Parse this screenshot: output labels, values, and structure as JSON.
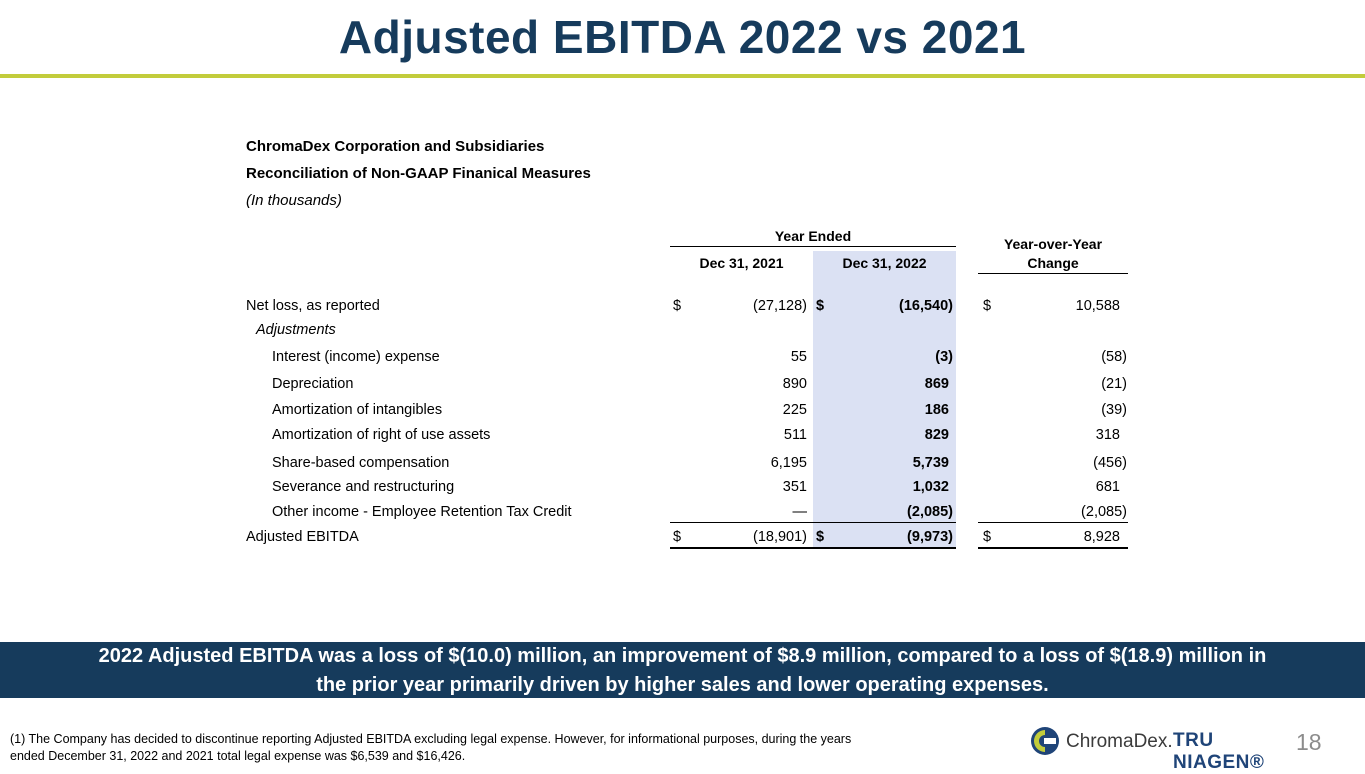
{
  "title": "Adjusted EBITDA  2022 vs 2021",
  "header": {
    "company": "ChromaDex Corporation and Subsidiaries",
    "subtitle": "Reconciliation of Non-GAAP Finanical Measures",
    "units": "(In thousands)"
  },
  "table": {
    "group_header": "Year Ended",
    "col1": "Dec 31, 2021",
    "col2": "Dec 31, 2022",
    "col3_line1": "Year-over-Year",
    "col3_line2": "Change",
    "rows": [
      {
        "label": "Net loss, as reported",
        "d1": "$",
        "v1": "(27,128)",
        "d2": "$",
        "v2": "(16,540)",
        "d3": "$",
        "v3": "10,588"
      },
      {
        "label": "Adjustments",
        "d1": "",
        "v1": "",
        "d2": "",
        "v2": "",
        "d3": "",
        "v3": ""
      },
      {
        "label": "Interest (income) expense",
        "d1": "",
        "v1": "55",
        "d2": "",
        "v2": "(3)",
        "d3": "",
        "v3": "(58)"
      },
      {
        "label": "Depreciation",
        "d1": "",
        "v1": "890",
        "d2": "",
        "v2": "869",
        "d3": "",
        "v3": "(21)"
      },
      {
        "label": "Amortization of intangibles",
        "d1": "",
        "v1": "225",
        "d2": "",
        "v2": "186",
        "d3": "",
        "v3": "(39)"
      },
      {
        "label": "Amortization of right of use assets",
        "d1": "",
        "v1": "511",
        "d2": "",
        "v2": "829",
        "d3": "",
        "v3": "318"
      },
      {
        "label": "Share-based compensation",
        "d1": "",
        "v1": "6,195",
        "d2": "",
        "v2": "5,739",
        "d3": "",
        "v3": "(456)"
      },
      {
        "label": "Severance and restructuring",
        "d1": "",
        "v1": "351",
        "d2": "",
        "v2": "1,032",
        "d3": "",
        "v3": "681"
      },
      {
        "label": "Other income - Employee Retention Tax Credit",
        "d1": "",
        "v1": "—",
        "d2": "",
        "v2": "(2,085)",
        "d3": "",
        "v3": "(2,085)"
      },
      {
        "label": "Adjusted EBITDA",
        "d1": "$",
        "v1": "(18,901)",
        "d2": "$",
        "v2": "(9,973)",
        "d3": "$",
        "v3": "8,928"
      }
    ]
  },
  "banner": {
    "line1": "2022 Adjusted EBITDA was a loss of $(10.0) million, an improvement of $8.9 million, compared to a loss of $(18.9) million in",
    "line2": "the prior year primarily driven by higher sales and lower operating expenses."
  },
  "footnote": {
    "line1": "(1) The Company has decided to discontinue reporting Adjusted EBITDA excluding legal expense. However, for informational purposes, during the years",
    "line2": "ended December 31, 2022 and 2021 total legal expense was $6,539 and $16,426."
  },
  "logo": {
    "brand1": "ChromaDex.",
    "brand2": "TRU NIAGEN®"
  },
  "page_number": "18",
  "colors": {
    "navy": "#163b5c",
    "accent": "#c2cc3b",
    "shade": "#dbe1f3"
  }
}
